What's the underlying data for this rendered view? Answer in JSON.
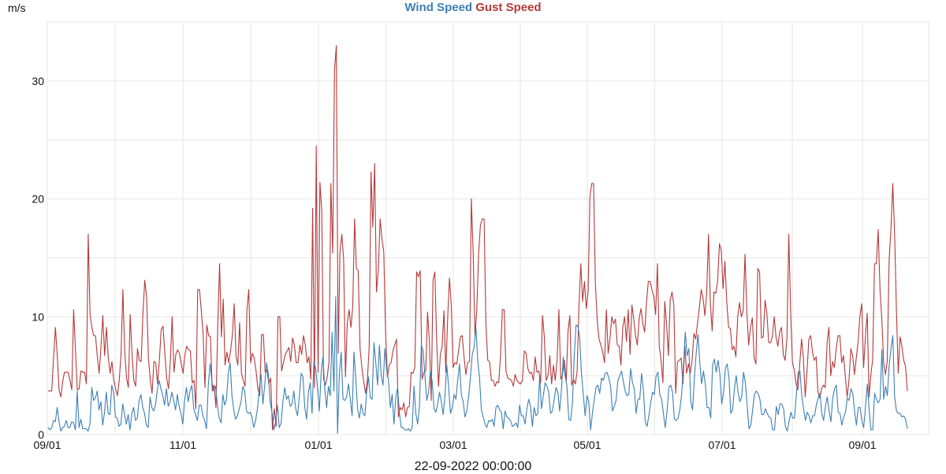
{
  "chart_data": {
    "type": "line",
    "legend": {
      "wind": "Wind Speed",
      "gust": "Gust Speed"
    },
    "unit": "m/s",
    "xlabel": "22-09-2022 00:00:00",
    "x_tick_labels": [
      "09/01",
      "11/01",
      "01/01",
      "03/01",
      "05/01",
      "07/01",
      "09/01"
    ],
    "y_tick_labels": [
      "0",
      "10",
      "20",
      "30"
    ],
    "ylim": [
      0,
      35
    ],
    "grid": true,
    "colors": {
      "wind": "#3c7fb4",
      "gust": "#b5393b",
      "grid": "#e6e6e6"
    },
    "series": [
      {
        "name": "Gust Speed",
        "key": "gust",
        "values": [
          3.7,
          3.7,
          3.7,
          6.5,
          9.1,
          6.8,
          3.8,
          3.2,
          4.5,
          5.3,
          5.3,
          5.3,
          4.6,
          3.8,
          10.6,
          7.2,
          3.8,
          3.9,
          5.4,
          5.3,
          5.3,
          4.3,
          17.0,
          10.2,
          9.1,
          8.4,
          8.4,
          6.6,
          5.2,
          7.5,
          10.1,
          6.7,
          9.1,
          6.5,
          5.2,
          6.2,
          4.6,
          3.9,
          3.3,
          4.6,
          6.9,
          12.3,
          7.1,
          4.8,
          4.0,
          10.2,
          6.9,
          4.6,
          4.1,
          7.3,
          6.3,
          6.2,
          10.3,
          13.1,
          11.7,
          6.5,
          4.7,
          3.5,
          6.2,
          6.1,
          4.3,
          6.3,
          8.9,
          9.2,
          6.9,
          4.8,
          3.9,
          6.2,
          10.0,
          5.3,
          6.8,
          7.2,
          6.9,
          6.0,
          5.2,
          6.8,
          7.5,
          7.2,
          7.1,
          4.4,
          4.6,
          2.2,
          12.3,
          12.3,
          10.5,
          8.5,
          4.0,
          9.3,
          8.4,
          8.3,
          3.7,
          4.2,
          2.3,
          9.2,
          14.5,
          8.3,
          11.5,
          5.9,
          7.0,
          6.1,
          7.1,
          8.4,
          11.1,
          6.7,
          5.9,
          9.5,
          5.2,
          4.6,
          4.1,
          10.6,
          12.3,
          6.1,
          6.9,
          6.5,
          5.4,
          3.9,
          3.3,
          8.5,
          8.5,
          5.3,
          5.5,
          4.3,
          4.8,
          0.4,
          2.2,
          0.7,
          10.0,
          10.0,
          5.4,
          6.1,
          6.8,
          7.1,
          7.4,
          6.2,
          8.2,
          7.6,
          6.1,
          6.1,
          7.6,
          6.8,
          8.4,
          7.6,
          6.1,
          6.6,
          4.7,
          19.2,
          4.0,
          24.5,
          5.3,
          21.4,
          19.1,
          4.7,
          4.2,
          4.9,
          6.2,
          21.3,
          15.4,
          30.9,
          33.0,
          6.9,
          15.5,
          17.0,
          14.9,
          4.9,
          9.5,
          10.6,
          9.1,
          10.9,
          18.3,
          14.1,
          13.9,
          7.3,
          5.7,
          4.5,
          3.5,
          4.6,
          7.4,
          22.3,
          17.6,
          23.0,
          12.1,
          13.9,
          18.3,
          16.6,
          15.5,
          8.7,
          4.9,
          5.9,
          6.1,
          7.1,
          7.6,
          8.1,
          1.5,
          2.3,
          2.1,
          2.7,
          1.5,
          2.3,
          2.4,
          5.3,
          5.2,
          5.7,
          13.8,
          13.4,
          13.9,
          4.7,
          5.3,
          5.4,
          10.4,
          7.9,
          2.9,
          13.1,
          13.8,
          7.9,
          4.1,
          6.8,
          7.5,
          10.5,
          5.3,
          9.8,
          13.3,
          11.0,
          5.7,
          6.1,
          6.0,
          7.1,
          8.3,
          8.4,
          6.6,
          5.1,
          6.1,
          6.2,
          20.0,
          15.4,
          8.4,
          10.6,
          15.4,
          17.8,
          18.3,
          18.3,
          9.3,
          6.3,
          6.2,
          4.6,
          4.6,
          4.1,
          4.5,
          4.4,
          6.7,
          10.6,
          10.6,
          5.4,
          4.8,
          4.7,
          4.6,
          4.1,
          5.1,
          4.6,
          4.4,
          4.3,
          4.6,
          7.1,
          6.9,
          5.6,
          5.2,
          5.3,
          4.6,
          6.6,
          5.3,
          5.4,
          4.4,
          10.1,
          8.3,
          4.6,
          5.0,
          6.7,
          4.3,
          5.9,
          4.6,
          6.3,
          10.6,
          4.7,
          5.1,
          6.3,
          4.5,
          8.8,
          10.1,
          4.2,
          4.7,
          4.3,
          5.4,
          11.0,
          14.5,
          11.3,
          13.0,
          10.7,
          12.1,
          20.2,
          21.3,
          21.3,
          12.8,
          9.7,
          8.1,
          7.6,
          7.0,
          6.1,
          10.6,
          6.9,
          8.2,
          10.0,
          9.4,
          9.8,
          7.6,
          7.5,
          5.9,
          9.1,
          10.0,
          7.9,
          10.6,
          6.8,
          11.0,
          9.8,
          8.4,
          7.6,
          9.9,
          10.7,
          9.4,
          8.7,
          11.2,
          13.0,
          13.0,
          12.3,
          11.7,
          10.2,
          14.5,
          7.5,
          6.3,
          4.4,
          11.3,
          9.4,
          6.7,
          11.4,
          12.1,
          11.0,
          3.5,
          6.2,
          6.3,
          6.5,
          4.3,
          7.6,
          5.2,
          6.0,
          5.2,
          6.3,
          8.6,
          8.1,
          9.5,
          10.8,
          12.3,
          11.6,
          10.1,
          12.0,
          17.0,
          11.2,
          8.8,
          12.1,
          12.0,
          13.0,
          16.2,
          15.6,
          12.4,
          14.7,
          11.3,
          9.1,
          9.0,
          7.2,
          7.5,
          6.6,
          10.0,
          11.2,
          10.0,
          10.5,
          15.3,
          10.5,
          7.6,
          9.1,
          9.9,
          6.5,
          6.0,
          14.1,
          13.8,
          8.2,
          8.3,
          11.4,
          10.3,
          7.8,
          7.8,
          8.3,
          10.0,
          8.3,
          7.5,
          8.7,
          9.1,
          6.8,
          6.3,
          8.2,
          17.0,
          10.5,
          6.1,
          5.5,
          4.3,
          3.8,
          6.0,
          8.1,
          6.5,
          3.2,
          5.4,
          8.1,
          8.4,
          7.0,
          6.3,
          6.6,
          3.6,
          3.1,
          3.9,
          4.2,
          4.0,
          7.8,
          9.1,
          5.0,
          6.2,
          5.7,
          7.3,
          8.4,
          8.4,
          6.1,
          6.7,
          4.9,
          3.2,
          4.6,
          7.3,
          6.7,
          5.1,
          6.5,
          7.9,
          10.1,
          11.1,
          5.7,
          8.3,
          10.3,
          3.2,
          5.1,
          6.4,
          14.5,
          14.5,
          17.4,
          12.3,
          9.8,
          6.1,
          5.1,
          6.3,
          14.8,
          17.4,
          21.3,
          17.1,
          10.6,
          5.2,
          8.3,
          7.5,
          6.3,
          5.8,
          3.7
        ]
      },
      {
        "name": "Wind Speed",
        "key": "wind",
        "values": [
          0.6,
          0.4,
          0.6,
          1.2,
          1.1,
          2.3,
          1.1,
          0.3,
          0.6,
          0.7,
          1.2,
          0.6,
          0.6,
          1.1,
          1.0,
          0.4,
          3.7,
          0.6,
          1.3,
          0.5,
          0.5,
          0.5,
          0.3,
          0.9,
          4.0,
          2.9,
          3.1,
          3.7,
          2.1,
          2.8,
          0.8,
          1.9,
          3.6,
          1.8,
          1.7,
          4.2,
          3.6,
          1.5,
          1.4,
          0.7,
          0.9,
          2.6,
          1.7,
          0.9,
          1.7,
          0.4,
          1.8,
          2.3,
          1.2,
          1.4,
          2.9,
          3.4,
          2.3,
          1.8,
          0.8,
          0.6,
          3.2,
          2.3,
          2.0,
          2.5,
          3.8,
          4.6,
          3.9,
          3.3,
          2.5,
          3.9,
          2.4,
          2.8,
          3.6,
          2.9,
          2.1,
          3.4,
          2.4,
          1.8,
          0.9,
          2.9,
          4.0,
          2.8,
          3.7,
          4.2,
          2.2,
          1.7,
          1.2,
          2.5,
          2.5,
          1.6,
          1.2,
          0.5,
          4.2,
          6.0,
          4.5,
          3.7,
          4.1,
          2.5,
          1.4,
          1.0,
          3.4,
          2.5,
          3.0,
          5.2,
          6.1,
          3.3,
          2.1,
          1.3,
          1.6,
          2.2,
          2.8,
          4.1,
          3.7,
          2.0,
          1.8,
          1.9,
          1.5,
          0.6,
          1.2,
          2.2,
          3.9,
          5.1,
          2.6,
          4.2,
          6.1,
          5.1,
          2.7,
          1.9,
          0.4,
          1.1,
          2.5,
          0.6,
          1.0,
          2.8,
          4.0,
          3.0,
          3.3,
          2.4,
          2.6,
          3.7,
          2.2,
          1.6,
          3.2,
          5.2,
          4.9,
          2.3,
          1.3,
          3.6,
          4.4,
          1.8,
          6.2,
          5.6,
          4.0,
          2.0,
          5.3,
          6.6,
          3.8,
          2.3,
          4.1,
          3.3,
          8.7,
          3.7,
          11.7,
          0.1,
          5.1,
          7.0,
          3.0,
          2.9,
          3.2,
          4.3,
          3.0,
          1.6,
          7.0,
          4.8,
          2.2,
          1.4,
          2.6,
          1.8,
          1.6,
          3.6,
          4.9,
          3.1,
          3.0,
          7.8,
          6.1,
          4.2,
          7.6,
          5.0,
          4.2,
          7.3,
          5.5,
          4.6,
          2.3,
          3.4,
          0.9,
          3.2,
          4.0,
          1.8,
          0.6,
          0.6,
          0.4,
          0.4,
          0.5,
          0.3,
          0.6,
          4.1,
          1.8,
          0.9,
          2.4,
          7.6,
          7.1,
          5.0,
          2.9,
          3.6,
          5.4,
          4.5,
          2.2,
          1.9,
          2.6,
          3.6,
          2.8,
          1.7,
          3.3,
          5.9,
          4.1,
          1.8,
          2.3,
          3.4,
          3.0,
          4.6,
          6.0,
          3.4,
          2.8,
          1.5,
          2.0,
          3.2,
          4.9,
          6.8,
          7.4,
          9.1,
          6.3,
          4.8,
          2.1,
          1.5,
          0.9,
          0.6,
          1.2,
          1.1,
          1.3,
          0.7,
          2.3,
          2.5,
          2.1,
          1.9,
          0.5,
          2.0,
          1.5,
          1.4,
          1.2,
          0.7,
          0.8,
          1.0,
          0.6,
          2.5,
          1.6,
          1.6,
          0.9,
          2.2,
          3.0,
          2.4,
          0.7,
          2.3,
          1.6,
          1.8,
          4.9,
          2.2,
          3.3,
          4.4,
          4.1,
          3.6,
          1.8,
          2.0,
          3.0,
          4.0,
          3.6,
          2.0,
          3.8,
          6.6,
          5.0,
          4.1,
          1.3,
          1.2,
          2.6,
          6.6,
          9.3,
          9.2,
          8.3,
          5.1,
          3.4,
          1.6,
          3.3,
          2.8,
          0.4,
          1.8,
          3.0,
          4.0,
          4.2,
          3.5,
          4.8,
          4.6,
          5.2,
          5.3,
          4.8,
          4.1,
          2.0,
          2.4,
          2.9,
          4.6,
          5.0,
          5.4,
          4.5,
          3.7,
          3.3,
          3.4,
          5.6,
          4.4,
          3.9,
          1.8,
          3.0,
          3.0,
          5.2,
          3.8,
          1.1,
          0.7,
          1.6,
          2.7,
          3.6,
          3.4,
          5.0,
          5.3,
          3.4,
          3.0,
          1.8,
          0.6,
          2.0,
          4.0,
          4.2,
          3.6,
          1.3,
          1.2,
          1.4,
          2.1,
          3.4,
          5.8,
          8.7,
          6.7,
          7.3,
          2.8,
          2.1,
          4.8,
          6.9,
          8.5,
          6.1,
          4.3,
          5.4,
          4.3,
          2.3,
          2.3,
          1.4,
          5.9,
          6.4,
          5.3,
          6.3,
          5.2,
          2.6,
          3.5,
          5.6,
          6.0,
          4.9,
          1.8,
          2.1,
          3.9,
          5.0,
          3.6,
          2.8,
          3.2,
          5.3,
          4.4,
          2.5,
          0.5,
          0.8,
          2.1,
          3.4,
          3.7,
          3.5,
          3.0,
          1.7,
          1.7,
          2.2,
          1.8,
          1.5,
          1.4,
          0.4,
          0.4,
          2.4,
          1.7,
          2.6,
          2.6,
          2.2,
          0.7,
          0.3,
          1.1,
          1.9,
          1.4,
          1.4,
          3.4,
          5.3,
          5.4,
          3.3,
          2.2,
          1.2,
          1.9,
          1.6,
          1.0,
          1.6,
          1.6,
          2.5,
          3.1,
          3.5,
          1.8,
          1.2,
          2.4,
          3.2,
          2.0,
          1.1,
          3.1,
          3.9,
          4.2,
          1.9,
          1.8,
          0.8,
          1.5,
          1.9,
          3.1,
          2.9,
          3.9,
          3.5,
          2.0,
          0.8,
          2.3,
          2.3,
          1.2,
          0.6,
          2.4,
          4.3,
          2.1,
          0.4,
          0.4,
          3.5,
          3.0,
          2.7,
          3.0,
          7.2,
          3.0,
          4.1,
          3.3,
          5.9,
          7.3,
          8.4,
          3.2,
          2.0,
          1.8,
          1.8,
          1.5,
          1.6,
          1.3,
          0.5
        ]
      }
    ]
  }
}
